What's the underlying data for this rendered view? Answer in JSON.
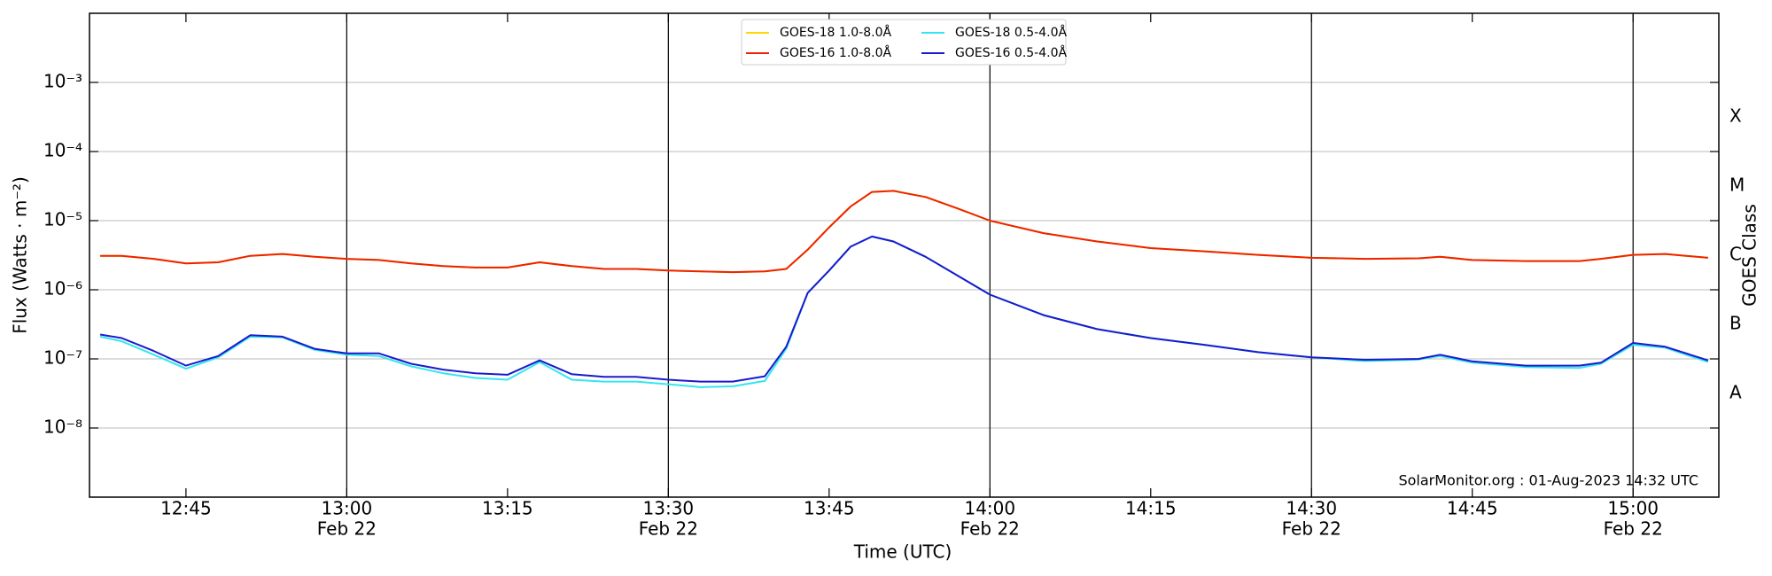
{
  "chart_data": {
    "type": "line",
    "x_label": "Time (UTC)",
    "y_label": "Flux (Watts · m⁻²)",
    "y2_label": "GOES Class",
    "watermark": "SolarMonitor.org : 01-Aug-2023 14:32 UTC",
    "log_y": true,
    "grid": "y",
    "legend": "top",
    "x": [
      "12:37",
      "12:39",
      "12:42",
      "12:45",
      "12:48",
      "12:51",
      "12:54",
      "12:57",
      "13:00",
      "13:03",
      "13:06",
      "13:09",
      "13:12",
      "13:15",
      "13:18",
      "13:21",
      "13:24",
      "13:27",
      "13:30",
      "13:33",
      "13:36",
      "13:39",
      "13:41",
      "13:43",
      "13:45",
      "13:47",
      "13:49",
      "13:51",
      "13:54",
      "13:57",
      "14:00",
      "14:05",
      "14:10",
      "14:15",
      "14:20",
      "14:25",
      "14:30",
      "14:35",
      "14:40",
      "14:42",
      "14:45",
      "14:50",
      "14:55",
      "14:57",
      "15:00",
      "15:03",
      "15:07"
    ],
    "xlim": [
      "12:36",
      "15:08"
    ],
    "xticks": [
      "12:45",
      {
        "value": "13:00",
        "label": "13:00",
        "date": "Feb 22"
      },
      "13:15",
      {
        "value": "13:30",
        "label": "13:30",
        "date": "Feb 22"
      },
      "13:45",
      {
        "value": "14:00",
        "label": "14:00",
        "date": "Feb 22"
      },
      "14:15",
      {
        "value": "14:30",
        "label": "14:30",
        "date": "Feb 22"
      },
      "14:45",
      {
        "value": "15:00",
        "label": "15:00",
        "date": "Feb 22"
      }
    ],
    "ylim": [
      1e-09,
      0.01
    ],
    "yticks": [
      {
        "value": 1e-08,
        "label": "10⁻⁸"
      },
      {
        "value": 1e-07,
        "label": "10⁻⁷"
      },
      {
        "value": 1e-06,
        "label": "10⁻⁶"
      },
      {
        "value": 1e-05,
        "label": "10⁻⁵"
      },
      {
        "value": 0.0001,
        "label": "10⁻⁴"
      },
      {
        "value": 0.001,
        "label": "10⁻³"
      }
    ],
    "y2ticks": [
      {
        "value": 3.16e-08,
        "label": "A"
      },
      {
        "value": 3.16e-07,
        "label": "B"
      },
      {
        "value": 3.16e-06,
        "label": "C"
      },
      {
        "value": 3.16e-05,
        "label": "M"
      },
      {
        "value": 0.000316,
        "label": "X"
      }
    ],
    "series": [
      {
        "name": "GOES-18 1.0-8.0Å",
        "color": "#ffd700",
        "values": [
          3.1e-06,
          3.1e-06,
          2.8e-06,
          2.4e-06,
          2.5e-06,
          3.1e-06,
          3.3e-06,
          3e-06,
          2.8e-06,
          2.7e-06,
          2.4e-06,
          2.2e-06,
          2.1e-06,
          2.1e-06,
          2.5e-06,
          2.2e-06,
          2e-06,
          2e-06,
          1.9e-06,
          1.85e-06,
          1.8e-06,
          1.85e-06,
          2e-06,
          3.8e-06,
          8e-06,
          1.6e-05,
          2.6e-05,
          2.7e-05,
          2.2e-05,
          1.5e-05,
          1e-05,
          6.6e-06,
          5e-06,
          4e-06,
          3.6e-06,
          3.2e-06,
          2.9e-06,
          2.8e-06,
          2.85e-06,
          3e-06,
          2.7e-06,
          2.6e-06,
          2.6e-06,
          2.8e-06,
          3.2e-06,
          3.3e-06,
          2.9e-06
        ]
      },
      {
        "name": "GOES-16 1.0-8.0Å",
        "color": "#ee2200",
        "values": [
          3.1e-06,
          3.1e-06,
          2.8e-06,
          2.4e-06,
          2.5e-06,
          3.1e-06,
          3.3e-06,
          3e-06,
          2.8e-06,
          2.7e-06,
          2.4e-06,
          2.2e-06,
          2.1e-06,
          2.1e-06,
          2.5e-06,
          2.2e-06,
          2e-06,
          2e-06,
          1.9e-06,
          1.85e-06,
          1.8e-06,
          1.85e-06,
          2e-06,
          3.8e-06,
          8e-06,
          1.6e-05,
          2.6e-05,
          2.7e-05,
          2.2e-05,
          1.5e-05,
          1e-05,
          6.6e-06,
          5e-06,
          4e-06,
          3.6e-06,
          3.2e-06,
          2.9e-06,
          2.8e-06,
          2.85e-06,
          3e-06,
          2.7e-06,
          2.6e-06,
          2.6e-06,
          2.8e-06,
          3.2e-06,
          3.3e-06,
          2.9e-06
        ]
      },
      {
        "name": "GOES-18 0.5-4.0Å",
        "color": "#33e6f0",
        "values": [
          2.1e-07,
          1.8e-07,
          1.15e-07,
          7.2e-08,
          1.05e-07,
          2.1e-07,
          2.05e-07,
          1.35e-07,
          1.15e-07,
          1.1e-07,
          7.8e-08,
          6.2e-08,
          5.3e-08,
          5e-08,
          9e-08,
          5e-08,
          4.7e-08,
          4.7e-08,
          4.3e-08,
          3.9e-08,
          4e-08,
          4.8e-08,
          1.4e-07,
          9e-07,
          1.9e-06,
          4.2e-06,
          5.9e-06,
          5e-06,
          3e-06,
          1.6e-06,
          8.5e-07,
          4.3e-07,
          2.7e-07,
          2e-07,
          1.6e-07,
          1.25e-07,
          1.05e-07,
          9.3e-08,
          9.8e-08,
          1.1e-07,
          8.8e-08,
          7.6e-08,
          7.4e-08,
          8.5e-08,
          1.6e-07,
          1.45e-07,
          9e-08
        ]
      },
      {
        "name": "GOES-16 0.5-4.0Å",
        "color": "#1a1acc",
        "values": [
          2.25e-07,
          2e-07,
          1.3e-07,
          8e-08,
          1.1e-07,
          2.2e-07,
          2.1e-07,
          1.4e-07,
          1.2e-07,
          1.2e-07,
          8.5e-08,
          7e-08,
          6.2e-08,
          5.9e-08,
          9.5e-08,
          6e-08,
          5.5e-08,
          5.5e-08,
          5e-08,
          4.7e-08,
          4.7e-08,
          5.6e-08,
          1.5e-07,
          9e-07,
          1.9e-06,
          4.2e-06,
          5.9e-06,
          5e-06,
          3e-06,
          1.6e-06,
          8.5e-07,
          4.3e-07,
          2.7e-07,
          2e-07,
          1.6e-07,
          1.25e-07,
          1.05e-07,
          9.7e-08,
          1e-07,
          1.15e-07,
          9.2e-08,
          8e-08,
          8e-08,
          8.8e-08,
          1.7e-07,
          1.5e-07,
          9.5e-08
        ]
      }
    ]
  }
}
